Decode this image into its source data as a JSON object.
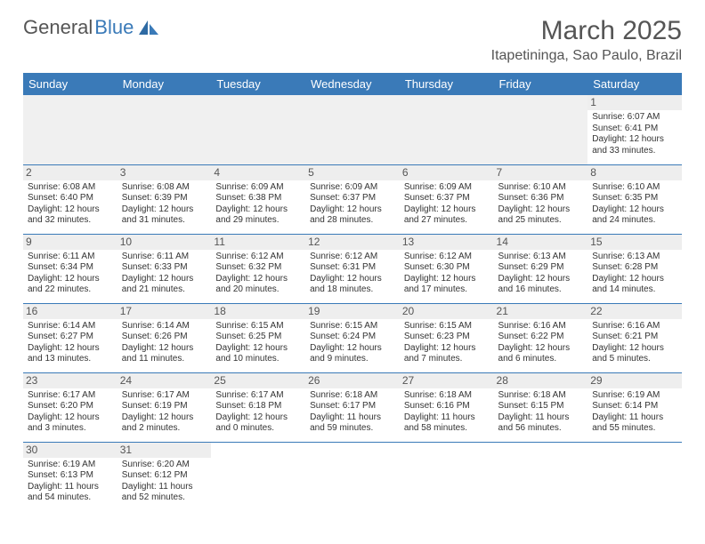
{
  "logo": {
    "text1": "General",
    "text2": "Blue"
  },
  "title": "March 2025",
  "location": "Itapetininga, Sao Paulo, Brazil",
  "colors": {
    "header_bg": "#3a7ab8",
    "header_text": "#ffffff",
    "daynum_bg": "#eeeeee",
    "border": "#3a7ab8",
    "title_color": "#555555"
  },
  "weekdays": [
    "Sunday",
    "Monday",
    "Tuesday",
    "Wednesday",
    "Thursday",
    "Friday",
    "Saturday"
  ],
  "weeks": [
    [
      null,
      null,
      null,
      null,
      null,
      null,
      {
        "n": "1",
        "sr": "Sunrise: 6:07 AM",
        "ss": "Sunset: 6:41 PM",
        "dl": "Daylight: 12 hours and 33 minutes."
      }
    ],
    [
      {
        "n": "2",
        "sr": "Sunrise: 6:08 AM",
        "ss": "Sunset: 6:40 PM",
        "dl": "Daylight: 12 hours and 32 minutes."
      },
      {
        "n": "3",
        "sr": "Sunrise: 6:08 AM",
        "ss": "Sunset: 6:39 PM",
        "dl": "Daylight: 12 hours and 31 minutes."
      },
      {
        "n": "4",
        "sr": "Sunrise: 6:09 AM",
        "ss": "Sunset: 6:38 PM",
        "dl": "Daylight: 12 hours and 29 minutes."
      },
      {
        "n": "5",
        "sr": "Sunrise: 6:09 AM",
        "ss": "Sunset: 6:37 PM",
        "dl": "Daylight: 12 hours and 28 minutes."
      },
      {
        "n": "6",
        "sr": "Sunrise: 6:09 AM",
        "ss": "Sunset: 6:37 PM",
        "dl": "Daylight: 12 hours and 27 minutes."
      },
      {
        "n": "7",
        "sr": "Sunrise: 6:10 AM",
        "ss": "Sunset: 6:36 PM",
        "dl": "Daylight: 12 hours and 25 minutes."
      },
      {
        "n": "8",
        "sr": "Sunrise: 6:10 AM",
        "ss": "Sunset: 6:35 PM",
        "dl": "Daylight: 12 hours and 24 minutes."
      }
    ],
    [
      {
        "n": "9",
        "sr": "Sunrise: 6:11 AM",
        "ss": "Sunset: 6:34 PM",
        "dl": "Daylight: 12 hours and 22 minutes."
      },
      {
        "n": "10",
        "sr": "Sunrise: 6:11 AM",
        "ss": "Sunset: 6:33 PM",
        "dl": "Daylight: 12 hours and 21 minutes."
      },
      {
        "n": "11",
        "sr": "Sunrise: 6:12 AM",
        "ss": "Sunset: 6:32 PM",
        "dl": "Daylight: 12 hours and 20 minutes."
      },
      {
        "n": "12",
        "sr": "Sunrise: 6:12 AM",
        "ss": "Sunset: 6:31 PM",
        "dl": "Daylight: 12 hours and 18 minutes."
      },
      {
        "n": "13",
        "sr": "Sunrise: 6:12 AM",
        "ss": "Sunset: 6:30 PM",
        "dl": "Daylight: 12 hours and 17 minutes."
      },
      {
        "n": "14",
        "sr": "Sunrise: 6:13 AM",
        "ss": "Sunset: 6:29 PM",
        "dl": "Daylight: 12 hours and 16 minutes."
      },
      {
        "n": "15",
        "sr": "Sunrise: 6:13 AM",
        "ss": "Sunset: 6:28 PM",
        "dl": "Daylight: 12 hours and 14 minutes."
      }
    ],
    [
      {
        "n": "16",
        "sr": "Sunrise: 6:14 AM",
        "ss": "Sunset: 6:27 PM",
        "dl": "Daylight: 12 hours and 13 minutes."
      },
      {
        "n": "17",
        "sr": "Sunrise: 6:14 AM",
        "ss": "Sunset: 6:26 PM",
        "dl": "Daylight: 12 hours and 11 minutes."
      },
      {
        "n": "18",
        "sr": "Sunrise: 6:15 AM",
        "ss": "Sunset: 6:25 PM",
        "dl": "Daylight: 12 hours and 10 minutes."
      },
      {
        "n": "19",
        "sr": "Sunrise: 6:15 AM",
        "ss": "Sunset: 6:24 PM",
        "dl": "Daylight: 12 hours and 9 minutes."
      },
      {
        "n": "20",
        "sr": "Sunrise: 6:15 AM",
        "ss": "Sunset: 6:23 PM",
        "dl": "Daylight: 12 hours and 7 minutes."
      },
      {
        "n": "21",
        "sr": "Sunrise: 6:16 AM",
        "ss": "Sunset: 6:22 PM",
        "dl": "Daylight: 12 hours and 6 minutes."
      },
      {
        "n": "22",
        "sr": "Sunrise: 6:16 AM",
        "ss": "Sunset: 6:21 PM",
        "dl": "Daylight: 12 hours and 5 minutes."
      }
    ],
    [
      {
        "n": "23",
        "sr": "Sunrise: 6:17 AM",
        "ss": "Sunset: 6:20 PM",
        "dl": "Daylight: 12 hours and 3 minutes."
      },
      {
        "n": "24",
        "sr": "Sunrise: 6:17 AM",
        "ss": "Sunset: 6:19 PM",
        "dl": "Daylight: 12 hours and 2 minutes."
      },
      {
        "n": "25",
        "sr": "Sunrise: 6:17 AM",
        "ss": "Sunset: 6:18 PM",
        "dl": "Daylight: 12 hours and 0 minutes."
      },
      {
        "n": "26",
        "sr": "Sunrise: 6:18 AM",
        "ss": "Sunset: 6:17 PM",
        "dl": "Daylight: 11 hours and 59 minutes."
      },
      {
        "n": "27",
        "sr": "Sunrise: 6:18 AM",
        "ss": "Sunset: 6:16 PM",
        "dl": "Daylight: 11 hours and 58 minutes."
      },
      {
        "n": "28",
        "sr": "Sunrise: 6:18 AM",
        "ss": "Sunset: 6:15 PM",
        "dl": "Daylight: 11 hours and 56 minutes."
      },
      {
        "n": "29",
        "sr": "Sunrise: 6:19 AM",
        "ss": "Sunset: 6:14 PM",
        "dl": "Daylight: 11 hours and 55 minutes."
      }
    ],
    [
      {
        "n": "30",
        "sr": "Sunrise: 6:19 AM",
        "ss": "Sunset: 6:13 PM",
        "dl": "Daylight: 11 hours and 54 minutes."
      },
      {
        "n": "31",
        "sr": "Sunrise: 6:20 AM",
        "ss": "Sunset: 6:12 PM",
        "dl": "Daylight: 11 hours and 52 minutes."
      },
      null,
      null,
      null,
      null,
      null
    ]
  ]
}
